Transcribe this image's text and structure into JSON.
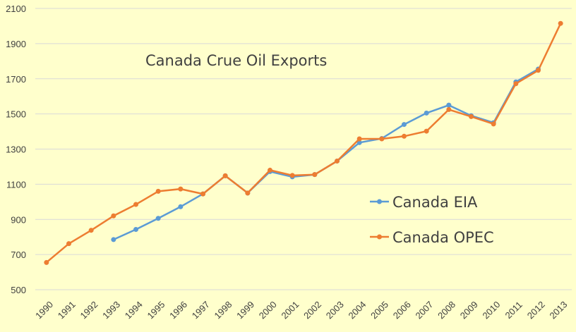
{
  "chart_data": {
    "type": "line",
    "title": "Canada Crue Oil Exports",
    "xlabel": "",
    "ylabel": "",
    "x": [
      "1990",
      "1991",
      "1992",
      "1993",
      "1994",
      "1995",
      "1996",
      "1997",
      "1998",
      "1999",
      "2000",
      "2001",
      "2002",
      "2003",
      "2004",
      "2005",
      "2006",
      "2007",
      "2008",
      "2009",
      "2010",
      "2011",
      "2012",
      "2013"
    ],
    "ylim": [
      500,
      2100
    ],
    "yticks": [
      500,
      700,
      900,
      1100,
      1300,
      1500,
      1700,
      1900,
      2100
    ],
    "grid": "horizontal",
    "legend_position": "right",
    "series": [
      {
        "name": "Canada EIA",
        "color": "#5B9BD5",
        "values": [
          null,
          null,
          null,
          785,
          843,
          906,
          972,
          1045,
          1148,
          1050,
          1172,
          1142,
          1155,
          1232,
          1337,
          1360,
          1440,
          1505,
          1550,
          1490,
          1450,
          1682,
          1755,
          null
        ]
      },
      {
        "name": "Canada OPEC",
        "color": "#ED7D31",
        "values": [
          655,
          762,
          838,
          920,
          985,
          1060,
          1073,
          1045,
          1148,
          1050,
          1180,
          1150,
          1155,
          1232,
          1358,
          1358,
          1373,
          1402,
          1525,
          1485,
          1443,
          1672,
          1748,
          2015
        ]
      }
    ]
  }
}
